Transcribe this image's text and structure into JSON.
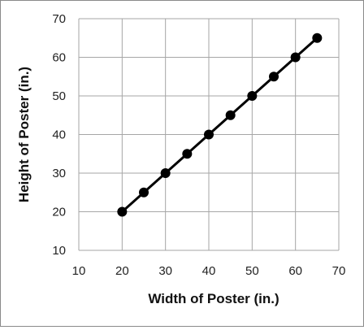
{
  "chart_data": {
    "type": "line",
    "title": "",
    "xlabel": "Width of Poster (in.)",
    "ylabel": "Height of Poster (in.)",
    "xlim": [
      10,
      70
    ],
    "ylim": [
      10,
      70
    ],
    "xticks": [
      10,
      20,
      30,
      40,
      50,
      60,
      70
    ],
    "yticks": [
      10,
      20,
      30,
      40,
      50,
      60,
      70
    ],
    "grid": true,
    "legend": "none",
    "colors": {
      "line": "#000000",
      "marker": "#000000",
      "grid": "#a6a6a6"
    },
    "series": [
      {
        "x": [
          20,
          25,
          30,
          35,
          40,
          45,
          50,
          55,
          60,
          65
        ],
        "y": [
          20,
          25,
          30,
          35,
          40,
          45,
          50,
          55,
          60,
          65
        ]
      }
    ]
  }
}
